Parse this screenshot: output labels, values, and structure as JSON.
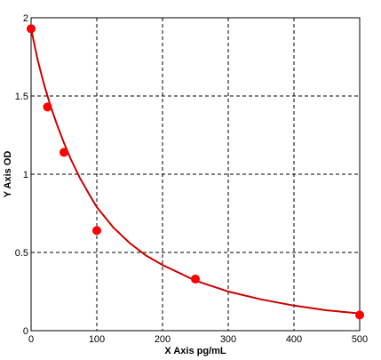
{
  "chart_data": {
    "type": "scatter",
    "title": "",
    "xlabel": "X Axis pg/mL",
    "ylabel": "Y Axis OD",
    "xlim": [
      0,
      500
    ],
    "ylim": [
      0,
      2
    ],
    "x_ticks": [
      0,
      100,
      200,
      300,
      400,
      500
    ],
    "y_ticks": [
      0,
      0.5,
      1,
      1.5,
      2
    ],
    "x_tick_labels": [
      "0",
      "100",
      "200",
      "300",
      "400",
      "500"
    ],
    "y_tick_labels": [
      "0",
      "0.5",
      "1",
      "1.5",
      "2"
    ],
    "grid": true,
    "grid_style": "dashed",
    "series": [
      {
        "kind": "points",
        "x": [
          0,
          25,
          50,
          100,
          250,
          500
        ],
        "y": [
          1.93,
          1.43,
          1.14,
          0.64,
          0.33,
          0.1
        ],
        "color": "#ff0000"
      },
      {
        "kind": "fit-curve",
        "x": [
          0,
          5,
          10,
          20,
          30,
          40,
          50,
          60,
          75,
          90,
          100,
          125,
          150,
          175,
          200,
          250,
          300,
          350,
          400,
          450,
          500
        ],
        "y": [
          1.93,
          1.83,
          1.73,
          1.57,
          1.43,
          1.31,
          1.2,
          1.1,
          0.97,
          0.86,
          0.79,
          0.66,
          0.56,
          0.48,
          0.42,
          0.32,
          0.25,
          0.2,
          0.16,
          0.13,
          0.11
        ],
        "color": "#cc0000"
      }
    ]
  }
}
